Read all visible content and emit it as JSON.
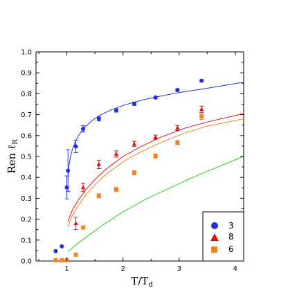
{
  "chart_data": {
    "type": "scatter",
    "title": "",
    "xlabel": "T/T",
    "xlabel_sub": "d",
    "ylabel": "Ren ℓ",
    "ylabel_sub": "R",
    "xlim": [
      0.45,
      4.15
    ],
    "ylim": [
      0.0,
      1.0
    ],
    "xticks": [
      "1",
      "2",
      "3",
      "4"
    ],
    "yticks": [
      "0.0",
      "0.1",
      "0.2",
      "0.3",
      "0.4",
      "0.5",
      "0.6",
      "0.7",
      "0.8",
      "0.9",
      "1.0"
    ],
    "grid": false,
    "legend_position": "bottom-right",
    "series": [
      {
        "name": "3",
        "marker": "circle",
        "color": "#1f2fe0",
        "x": [
          0.8,
          0.91,
          1.0,
          1.02,
          1.16,
          1.29,
          1.57,
          1.88,
          2.2,
          2.58,
          2.97,
          3.4
        ],
        "y": [
          0.047,
          0.07,
          0.352,
          0.432,
          0.548,
          0.632,
          0.68,
          0.72,
          0.752,
          0.782,
          0.818,
          0.862
        ],
        "err": [
          0,
          0,
          0.055,
          0.1,
          0.03,
          0.015,
          0.01,
          0.008,
          0.008,
          0.006,
          0.006,
          0.005
        ]
      },
      {
        "name": "8",
        "marker": "triangle",
        "color": "#e01010",
        "x": [
          0.8,
          0.91,
          1.0,
          1.16,
          1.29,
          1.57,
          1.88,
          2.2,
          2.58,
          2.97,
          3.4
        ],
        "y": [
          0.004,
          0.004,
          0.006,
          0.18,
          0.352,
          0.462,
          0.512,
          0.56,
          0.592,
          0.636,
          0.726
        ],
        "err": [
          0,
          0,
          0,
          0.03,
          0.02,
          0.02,
          0.015,
          0.012,
          0.01,
          0.012,
          0.015
        ]
      },
      {
        "name": "6",
        "marker": "square",
        "color": "#f5821e",
        "x": [
          0.8,
          0.91,
          1.0,
          1.16,
          1.29,
          1.57,
          1.88,
          2.2,
          2.58,
          2.97,
          3.4
        ],
        "y": [
          0.004,
          0.004,
          0.004,
          0.03,
          0.16,
          0.312,
          0.342,
          0.422,
          0.502,
          0.566,
          0.692
        ],
        "err": [
          0,
          0,
          0,
          0,
          0,
          0.01,
          0.01,
          0.01,
          0.01,
          0.01,
          0.015
        ]
      }
    ],
    "curves": [
      {
        "color": "#1f2fe0",
        "x": [
          1.02,
          1.04,
          1.07,
          1.1,
          1.15,
          1.2,
          1.3,
          1.45,
          1.6,
          1.8,
          2.0,
          2.3,
          2.6,
          3.0,
          3.5,
          4.15
        ],
        "y": [
          0.4,
          0.46,
          0.505,
          0.535,
          0.57,
          0.597,
          0.635,
          0.672,
          0.699,
          0.724,
          0.744,
          0.767,
          0.785,
          0.806,
          0.826,
          0.855
        ]
      },
      {
        "color": "#e01010",
        "x": [
          1.02,
          1.1,
          1.2,
          1.35,
          1.5,
          1.7,
          2.0,
          2.3,
          2.7,
          3.1,
          3.5,
          4.15
        ],
        "y": [
          0.19,
          0.245,
          0.29,
          0.345,
          0.39,
          0.44,
          0.5,
          0.545,
          0.595,
          0.635,
          0.665,
          0.705
        ]
      },
      {
        "color": "#f5821e",
        "x": [
          1.02,
          1.1,
          1.2,
          1.35,
          1.5,
          1.7,
          2.0,
          2.3,
          2.7,
          3.1,
          3.5,
          4.15
        ],
        "y": [
          0.165,
          0.22,
          0.265,
          0.32,
          0.365,
          0.415,
          0.475,
          0.52,
          0.57,
          0.612,
          0.645,
          0.68
        ]
      },
      {
        "color": "#22cc22",
        "x": [
          1.02,
          1.2,
          1.4,
          1.6,
          1.8,
          2.0,
          2.4,
          2.8,
          3.2,
          3.6,
          4.15
        ],
        "y": [
          0.045,
          0.085,
          0.125,
          0.165,
          0.2,
          0.235,
          0.295,
          0.345,
          0.395,
          0.44,
          0.5
        ]
      }
    ]
  }
}
